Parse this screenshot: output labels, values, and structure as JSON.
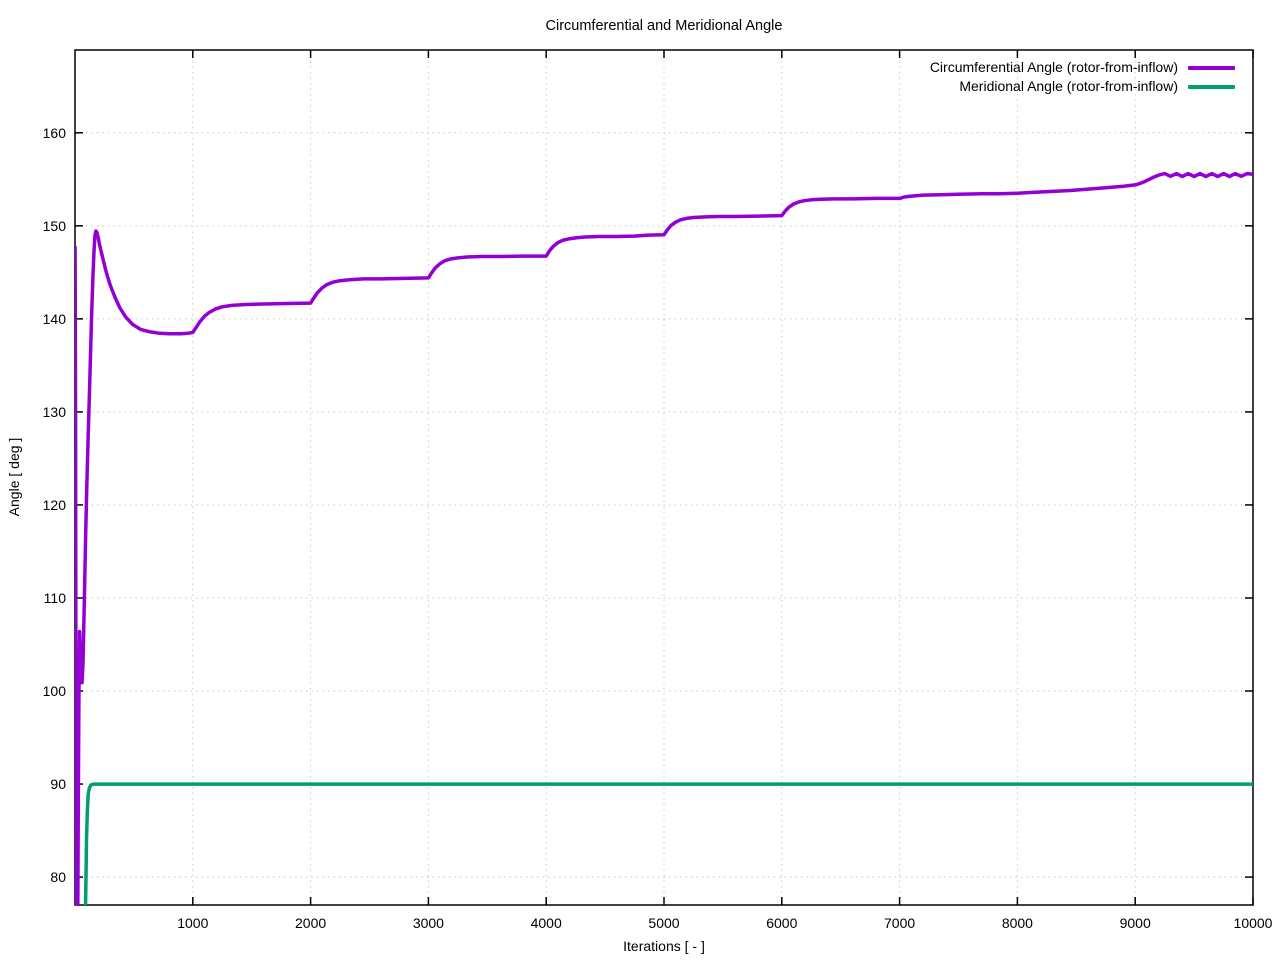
{
  "chart_data": {
    "type": "line",
    "title": "Circumferential and Meridional Angle",
    "xlabel": "Iterations [ - ]",
    "ylabel": "Angle [ deg ]",
    "xlim": [
      0,
      10000
    ],
    "ylim": [
      77,
      168.9
    ],
    "xticks": [
      1000,
      2000,
      3000,
      4000,
      5000,
      6000,
      7000,
      8000,
      9000,
      10000
    ],
    "yticks": [
      80,
      90,
      100,
      110,
      120,
      130,
      140,
      150,
      160
    ],
    "grid": "dotted",
    "grid_color": "#c8c8c8",
    "border_color": "#000000",
    "legend_position": "top-right-inside",
    "series": [
      {
        "name": "Circumferential Angle (rotor-from-inflow)",
        "color": "#9400D3",
        "points": [
          [
            1,
            147.7
          ],
          [
            5,
            128
          ],
          [
            8,
            103
          ],
          [
            11,
            82
          ],
          [
            14,
            72
          ],
          [
            22,
            72
          ],
          [
            28,
            88
          ],
          [
            33,
            99
          ],
          [
            39,
            106.4
          ],
          [
            45,
            103.5
          ],
          [
            52,
            101.5
          ],
          [
            59,
            100.9
          ],
          [
            68,
            103
          ],
          [
            80,
            110
          ],
          [
            90,
            116.5
          ],
          [
            100,
            122
          ],
          [
            112,
            127.5
          ],
          [
            125,
            133
          ],
          [
            140,
            140
          ],
          [
            152,
            144.5
          ],
          [
            162,
            147.5
          ],
          [
            170,
            149.0
          ],
          [
            177,
            149.45
          ],
          [
            186,
            149.3
          ],
          [
            196,
            148.8
          ],
          [
            210,
            147.9
          ],
          [
            240,
            146.3
          ],
          [
            270,
            144.8
          ],
          [
            300,
            143.6
          ],
          [
            340,
            142.3
          ],
          [
            380,
            141.2
          ],
          [
            430,
            140.2
          ],
          [
            490,
            139.4
          ],
          [
            560,
            138.85
          ],
          [
            640,
            138.6
          ],
          [
            720,
            138.45
          ],
          [
            800,
            138.4
          ],
          [
            900,
            138.4
          ],
          [
            960,
            138.45
          ],
          [
            1000,
            138.55
          ],
          [
            1030,
            139.1
          ],
          [
            1060,
            139.7
          ],
          [
            1100,
            140.3
          ],
          [
            1140,
            140.7
          ],
          [
            1190,
            141.05
          ],
          [
            1250,
            141.3
          ],
          [
            1330,
            141.45
          ],
          [
            1450,
            141.55
          ],
          [
            1600,
            141.6
          ],
          [
            1800,
            141.65
          ],
          [
            2000,
            141.7
          ],
          [
            2030,
            142.3
          ],
          [
            2060,
            142.85
          ],
          [
            2100,
            143.35
          ],
          [
            2140,
            143.7
          ],
          [
            2190,
            143.95
          ],
          [
            2250,
            144.1
          ],
          [
            2330,
            144.2
          ],
          [
            2450,
            144.3
          ],
          [
            2600,
            144.3
          ],
          [
            2800,
            144.35
          ],
          [
            3000,
            144.4
          ],
          [
            3030,
            145.0
          ],
          [
            3060,
            145.5
          ],
          [
            3100,
            145.95
          ],
          [
            3140,
            146.25
          ],
          [
            3190,
            146.45
          ],
          [
            3250,
            146.55
          ],
          [
            3330,
            146.65
          ],
          [
            3450,
            146.7
          ],
          [
            3600,
            146.7
          ],
          [
            3800,
            146.75
          ],
          [
            4000,
            146.75
          ],
          [
            4030,
            147.35
          ],
          [
            4060,
            147.8
          ],
          [
            4100,
            148.2
          ],
          [
            4140,
            148.45
          ],
          [
            4190,
            148.6
          ],
          [
            4250,
            148.7
          ],
          [
            4330,
            148.8
          ],
          [
            4450,
            148.85
          ],
          [
            4600,
            148.85
          ],
          [
            4750,
            148.9
          ],
          [
            4870,
            149.0
          ],
          [
            5000,
            149.05
          ],
          [
            5030,
            149.6
          ],
          [
            5060,
            150.05
          ],
          [
            5100,
            150.4
          ],
          [
            5140,
            150.65
          ],
          [
            5190,
            150.8
          ],
          [
            5250,
            150.9
          ],
          [
            5330,
            150.95
          ],
          [
            5450,
            151.0
          ],
          [
            5600,
            151.0
          ],
          [
            5800,
            151.05
          ],
          [
            6000,
            151.1
          ],
          [
            6030,
            151.6
          ],
          [
            6060,
            152.0
          ],
          [
            6100,
            152.35
          ],
          [
            6140,
            152.55
          ],
          [
            6190,
            152.7
          ],
          [
            6250,
            152.8
          ],
          [
            6330,
            152.85
          ],
          [
            6450,
            152.9
          ],
          [
            6600,
            152.9
          ],
          [
            6800,
            152.95
          ],
          [
            7000,
            152.95
          ],
          [
            7040,
            153.1
          ],
          [
            7100,
            153.2
          ],
          [
            7200,
            153.3
          ],
          [
            7350,
            153.35
          ],
          [
            7500,
            153.4
          ],
          [
            7700,
            153.45
          ],
          [
            7850,
            153.45
          ],
          [
            8000,
            153.5
          ],
          [
            8150,
            153.6
          ],
          [
            8300,
            153.7
          ],
          [
            8450,
            153.8
          ],
          [
            8600,
            153.95
          ],
          [
            8750,
            154.1
          ],
          [
            8900,
            154.25
          ],
          [
            9000,
            154.4
          ],
          [
            9040,
            154.55
          ],
          [
            9080,
            154.75
          ],
          [
            9120,
            155.0
          ],
          [
            9160,
            155.25
          ],
          [
            9200,
            155.45
          ],
          [
            9250,
            155.62
          ],
          [
            9300,
            155.32
          ],
          [
            9350,
            155.62
          ],
          [
            9400,
            155.3
          ],
          [
            9450,
            155.62
          ],
          [
            9500,
            155.3
          ],
          [
            9550,
            155.62
          ],
          [
            9600,
            155.3
          ],
          [
            9650,
            155.62
          ],
          [
            9700,
            155.3
          ],
          [
            9750,
            155.62
          ],
          [
            9800,
            155.3
          ],
          [
            9850,
            155.62
          ],
          [
            9900,
            155.32
          ],
          [
            9950,
            155.62
          ],
          [
            10000,
            155.55
          ]
        ]
      },
      {
        "name": "Meridional Angle (rotor-from-inflow)",
        "color": "#009E73",
        "points": [
          [
            86,
            74
          ],
          [
            88,
            76
          ],
          [
            93,
            80
          ],
          [
            98,
            84
          ],
          [
            104,
            87
          ],
          [
            112,
            88.9
          ],
          [
            122,
            89.6
          ],
          [
            135,
            89.9
          ],
          [
            155,
            90
          ],
          [
            2000,
            90
          ],
          [
            4000,
            90
          ],
          [
            6000,
            90
          ],
          [
            8000,
            90
          ],
          [
            10000,
            90
          ]
        ]
      }
    ]
  }
}
